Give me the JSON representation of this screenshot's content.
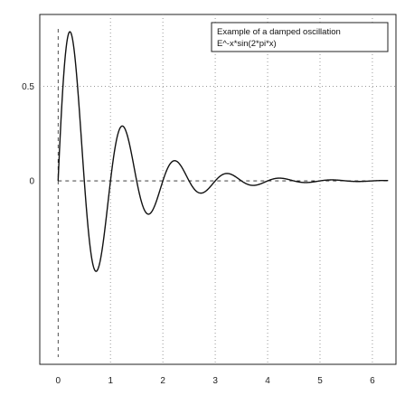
{
  "chart_data": {
    "type": "line",
    "title": "",
    "xlabel": "",
    "ylabel": "",
    "xlim": [
      -0.35,
      6.45
    ],
    "ylim": [
      -0.97,
      0.88
    ],
    "x_ticks": [
      "0",
      "1",
      "2",
      "3",
      "4",
      "5",
      "6"
    ],
    "x_tick_values": [
      0,
      1,
      2,
      3,
      4,
      5,
      6
    ],
    "y_ticks": [
      "0",
      "0.5"
    ],
    "y_tick_values": [
      0,
      0.5
    ],
    "grid": true,
    "legend_position": "top-right",
    "legend_lines": [
      "Example of a damped oscillation",
      "E^-x*sin(2*pi*x)"
    ],
    "series": [
      {
        "function": "exp(-x)*sin(2*pi*x)",
        "x_range": [
          0,
          6.3
        ],
        "points": [
          [
            0,
            0
          ],
          [
            0.1,
            0.532
          ],
          [
            0.2,
            0.778
          ],
          [
            0.25,
            0.779
          ],
          [
            0.3,
            0.705
          ],
          [
            0.4,
            0.394
          ],
          [
            0.5,
            0.0
          ],
          [
            0.6,
            -0.322
          ],
          [
            0.7,
            -0.472
          ],
          [
            0.75,
            -0.472
          ],
          [
            0.8,
            -0.428
          ],
          [
            0.9,
            -0.239
          ],
          [
            1.0,
            0.0
          ],
          [
            1.1,
            0.195
          ],
          [
            1.2,
            0.286
          ],
          [
            1.25,
            0.287
          ],
          [
            1.3,
            0.259
          ],
          [
            1.4,
            0.145
          ],
          [
            1.5,
            0.0
          ],
          [
            1.6,
            -0.118
          ],
          [
            1.7,
            -0.174
          ],
          [
            1.8,
            -0.157
          ],
          [
            1.9,
            -0.088
          ],
          [
            2.0,
            0.0
          ],
          [
            2.1,
            0.072
          ],
          [
            2.2,
            0.105
          ],
          [
            2.3,
            0.095
          ],
          [
            2.4,
            0.053
          ],
          [
            2.5,
            0.0
          ],
          [
            2.6,
            -0.044
          ],
          [
            2.7,
            -0.064
          ],
          [
            2.8,
            -0.058
          ],
          [
            2.9,
            -0.032
          ],
          [
            3.0,
            0.0
          ],
          [
            3.25,
            0.039
          ],
          [
            3.5,
            0.0
          ],
          [
            3.75,
            -0.024
          ],
          [
            4.0,
            0.0
          ],
          [
            4.25,
            0.014
          ],
          [
            4.5,
            0.0
          ],
          [
            4.75,
            -0.009
          ],
          [
            5.0,
            0.0
          ],
          [
            5.25,
            0.005
          ],
          [
            5.5,
            0.0
          ],
          [
            5.75,
            -0.003
          ],
          [
            6.0,
            0.0
          ],
          [
            6.3,
            0.0017
          ]
        ]
      }
    ]
  },
  "colors": {
    "line": "#111111",
    "axis": "#222222",
    "grid": "#9a9a9a"
  }
}
